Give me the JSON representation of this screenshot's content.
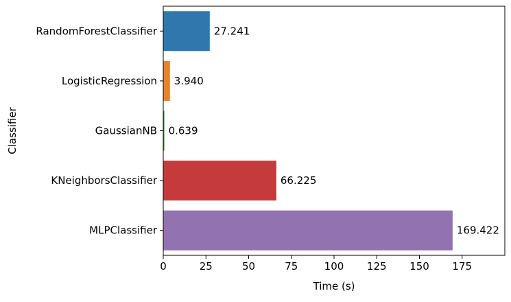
{
  "chart_data": {
    "type": "bar",
    "orientation": "horizontal",
    "categories": [
      "RandomForestClassifier",
      "LogisticRegression",
      "GaussianNB",
      "KNeighborsClassifier",
      "MLPClassifier"
    ],
    "values": [
      27.241,
      3.94,
      0.639,
      66.225,
      169.422
    ],
    "value_labels": [
      "27.241",
      "3.940",
      "0.639",
      "66.225",
      "169.422"
    ],
    "colors": [
      "#2e78ad",
      "#e8822a",
      "#2b9a2b",
      "#c53b3b",
      "#9272b1"
    ],
    "title": "",
    "xlabel": "Time (s)",
    "ylabel": "Classifier",
    "xlim": [
      0,
      200
    ],
    "xticks": [
      0,
      25,
      50,
      75,
      100,
      125,
      150,
      175
    ],
    "xtick_labels": [
      "0",
      "25",
      "50",
      "75",
      "100",
      "125",
      "150",
      "175"
    ],
    "grid": false,
    "legend": "none"
  }
}
